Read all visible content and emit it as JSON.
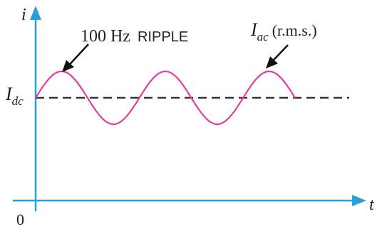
{
  "axes": {
    "y_label": "i",
    "x_label": "t",
    "origin_label": "0",
    "axis_color": "#2a9fd8"
  },
  "labels": {
    "ripple_hz": "100 Hz",
    "ripple_word": "RIPPLE",
    "idc_main": "I",
    "idc_sub": "dc",
    "iac_main": "I",
    "iac_sub": "ac",
    "iac_rms": "(r.m.s.)"
  },
  "waveform": {
    "color": "#e0409a",
    "cycles": 2.5,
    "dc_line_color": "#333333"
  }
}
